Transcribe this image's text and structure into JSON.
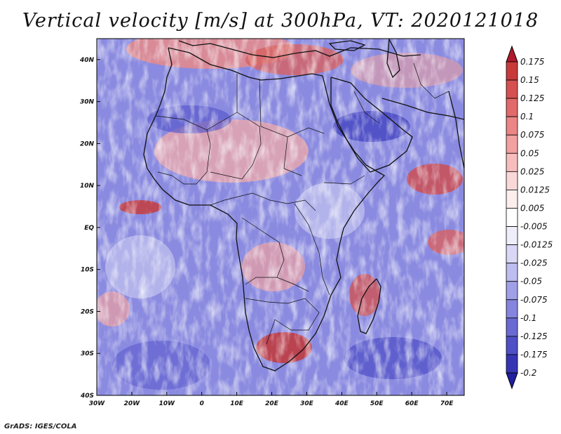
{
  "title": "Vertical velocity [m/s] at 300hPa, VT: 2020121018",
  "credit": "GrADS: IGES/COLA",
  "map": {
    "lat_labels": [
      "40N",
      "30N",
      "20N",
      "10N",
      "EQ",
      "10S",
      "20S",
      "30S",
      "40S"
    ],
    "lon_labels": [
      "30W",
      "20W",
      "10W",
      "0",
      "10E",
      "20E",
      "30E",
      "40E",
      "50E",
      "60E",
      "70E"
    ],
    "lon_range": [
      -30,
      75
    ],
    "lat_range": [
      -40,
      45
    ]
  },
  "colorbar": {
    "levels": [
      "0.175",
      "0.15",
      "0.125",
      "0.1",
      "0.075",
      "0.05",
      "0.025",
      "0.0125",
      "0.005",
      "-0.005",
      "-0.0125",
      "-0.025",
      "-0.05",
      "-0.075",
      "-0.1",
      "-0.125",
      "-0.175",
      "-0.2"
    ],
    "colors": [
      "#b2182b",
      "#c83a3a",
      "#d75050",
      "#e36a6a",
      "#ec8585",
      "#f2a0a0",
      "#f7bdbd",
      "#fbd8d8",
      "#fdeeee",
      "#ffffff",
      "#eeeefb",
      "#d8d8f6",
      "#bdbdf0",
      "#a0a0e8",
      "#8585df",
      "#6a6ad4",
      "#4f4fc6",
      "#3535b4",
      "#1f1fa0"
    ]
  }
}
